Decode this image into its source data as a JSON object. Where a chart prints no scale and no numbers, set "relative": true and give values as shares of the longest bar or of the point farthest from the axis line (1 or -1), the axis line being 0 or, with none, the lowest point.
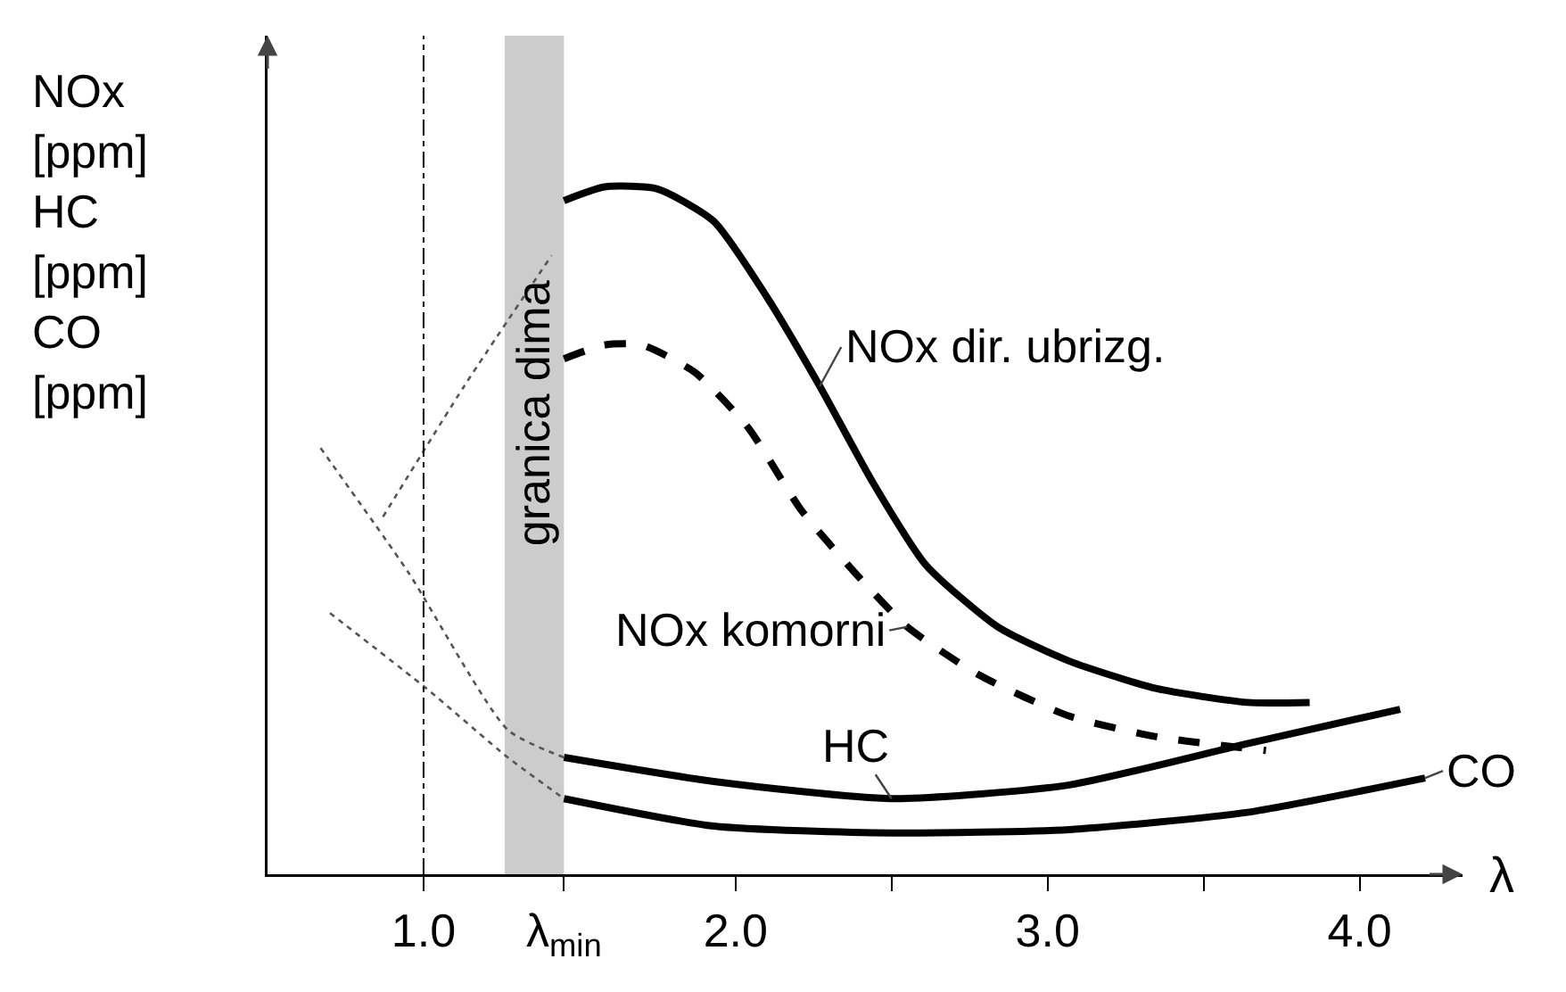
{
  "chart_data": {
    "type": "line",
    "relative": true,
    "xlabel": "λ",
    "ylabel": "NOx\n[ppm]\nHC\n[ppm]\nCO\n[ppm]",
    "xlim": [
      0.5,
      4.33
    ],
    "xticks": [
      {
        "value": 1,
        "label": "1.0"
      },
      {
        "value": 1.45,
        "label": "λ$_{min}$"
      },
      {
        "value": 2,
        "label": "2.0"
      },
      {
        "value": 2.5,
        "label": null
      },
      {
        "value": 3,
        "label": "3.0"
      },
      {
        "value": 3.5,
        "label": null
      },
      {
        "value": 4,
        "label": "4.0"
      }
    ],
    "series": [
      {
        "name": "NOx dir. ubrizg.",
        "color": "#000000",
        "line_style": "solid",
        "x": [
          1.45,
          1.58,
          1.75,
          1.93,
          2.1,
          2.27,
          2.44,
          2.61,
          2.84,
          3.07,
          3.35,
          3.64,
          3.84
        ],
        "values": [
          0.98,
          1.0,
          0.997,
          0.95,
          0.84,
          0.71,
          0.57,
          0.45,
          0.36,
          0.31,
          0.27,
          0.25,
          0.25
        ]
      },
      {
        "name": "NOx komorni",
        "color": "#000000",
        "line_style": "dashed",
        "x": [
          1.45,
          1.58,
          1.7,
          1.87,
          2.04,
          2.21,
          2.38,
          2.55,
          2.78,
          3.07,
          3.35,
          3.7
        ],
        "values": [
          0.75,
          0.77,
          0.77,
          0.73,
          0.65,
          0.53,
          0.44,
          0.36,
          0.29,
          0.23,
          0.2,
          0.18
        ]
      },
      {
        "name": "HC",
        "color": "#000000",
        "line_style": "solid",
        "x": [
          1.45,
          1.93,
          2.5,
          3.07,
          3.64,
          4.13
        ],
        "values": [
          0.17,
          0.135,
          0.11,
          0.13,
          0.19,
          0.24
        ]
      },
      {
        "name": "CO",
        "color": "#000000",
        "line_style": "solid",
        "x": [
          1.45,
          1.93,
          2.5,
          3.07,
          3.64,
          4.21
        ],
        "values": [
          0.11,
          0.07,
          0.06,
          0.065,
          0.09,
          0.14
        ]
      },
      {
        "color": "#555555",
        "line_style": "dotted",
        "x": [
          0.67,
          0.95,
          1.27,
          1.45
        ],
        "values": [
          0.62,
          0.44,
          0.21,
          0.17
        ]
      },
      {
        "color": "#555555",
        "line_style": "dotted",
        "x": [
          0.7,
          1.01,
          1.27,
          1.45
        ],
        "values": [
          0.38,
          0.27,
          0.17,
          0.11
        ]
      },
      {
        "color": "#555555",
        "line_style": "dotted",
        "x": [
          0.87,
          1.13,
          1.41
        ],
        "values": [
          0.52,
          0.71,
          0.9
        ]
      }
    ],
    "ref_lines": [
      {
        "axis": "x",
        "value": 1.0,
        "line_style": "dashdot",
        "color": "#000000"
      }
    ],
    "bands": [
      {
        "axis": "x",
        "from": 1.26,
        "to": 1.45,
        "label": "granica dima",
        "color": "#aaaaaa"
      }
    ],
    "grid": false,
    "legend": false
  }
}
